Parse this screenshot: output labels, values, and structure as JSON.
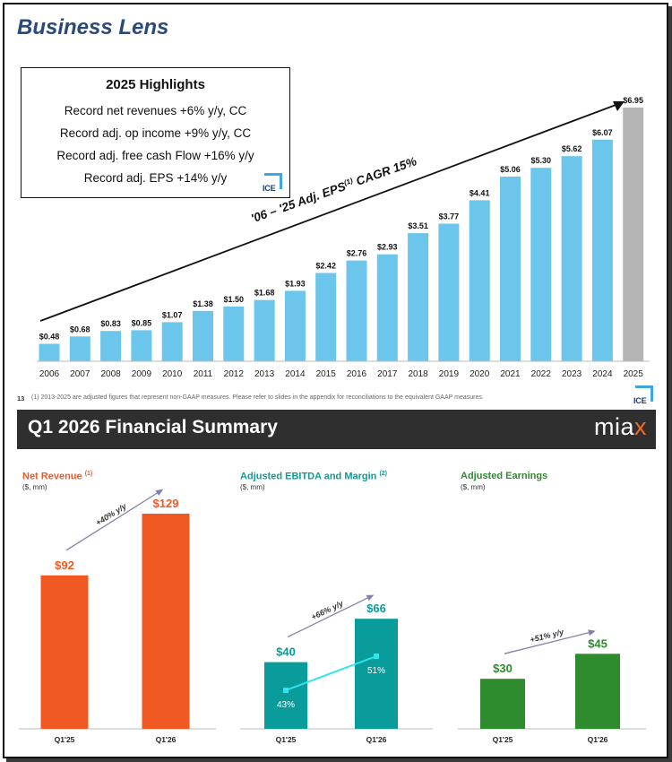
{
  "page": {
    "title": "Business Lens"
  },
  "highlights": {
    "title": "2025 Highlights",
    "items": [
      "Record net revenues +6% y/y, CC",
      "Record adj. op income +9% y/y, CC",
      "Record adj. free cash Flow +16% y/y",
      "Record adj. EPS +14% y/y"
    ],
    "logo_text": "ICE"
  },
  "slide": {
    "number": "13",
    "footnote": "(1) 2013-2025 are adjusted figures that represent non-GAAP measures. Please refer to slides in the appendix for reconciliations to the equivalent GAAP measures.",
    "logo_text": "ICE"
  },
  "summary": {
    "title": "Q1 2026 Financial Summary",
    "logo": "mia",
    "logo_accent": "x"
  },
  "colors": {
    "eps_bar": "#6cc5ea",
    "eps_bar_highlight": "#b5b5b5",
    "net_revenue": "#f05a22",
    "ebitda": "#0a9b9b",
    "ebitda_margin_line": "#33e4ee",
    "adj_earnings": "#2e8b2e",
    "trend_arrow": "#8080a8"
  },
  "chart_data": [
    {
      "type": "bar",
      "annotation": "'06 – '25 Adj. EPS(1) CAGR 15%",
      "categories": [
        "2006",
        "2007",
        "2008",
        "2009",
        "2010",
        "2011",
        "2012",
        "2013",
        "2014",
        "2015",
        "2016",
        "2017",
        "2018",
        "2019",
        "2020",
        "2021",
        "2022",
        "2023",
        "2024",
        "2025"
      ],
      "values": [
        0.48,
        0.68,
        0.83,
        0.85,
        1.07,
        1.38,
        1.5,
        1.68,
        1.93,
        2.42,
        2.76,
        2.93,
        3.51,
        3.77,
        4.41,
        5.06,
        5.3,
        5.62,
        6.07,
        6.95
      ],
      "labels": [
        "$0.48",
        "$0.68",
        "$0.83",
        "$0.85",
        "$1.07",
        "$1.38",
        "$1.50",
        "$1.68",
        "$1.93",
        "$2.42",
        "$2.76",
        "$2.93",
        "$3.51",
        "$3.77",
        "$4.41",
        "$5.06",
        "$5.30",
        "$5.62",
        "$6.07",
        "$6.95"
      ],
      "highlight_category": "2025"
    },
    {
      "type": "bar",
      "title": "Net Revenue",
      "title_note": "(1)",
      "subtitle": "($, mm)",
      "categories": [
        "Q1'25",
        "Q1'26"
      ],
      "values": [
        92,
        129
      ],
      "labels": [
        "$92",
        "$129"
      ],
      "growth_label": "+40% y/y"
    },
    {
      "type": "bar",
      "title": "Adjusted EBITDA and Margin",
      "title_note": "(2)",
      "subtitle": "($, mm)",
      "categories": [
        "Q1'25",
        "Q1'26"
      ],
      "values": [
        40,
        66
      ],
      "labels": [
        "$40",
        "$66"
      ],
      "growth_label": "+66% y/y",
      "margin_series": {
        "values": [
          43,
          51
        ],
        "labels": [
          "43%",
          "51%"
        ]
      }
    },
    {
      "type": "bar",
      "title": "Adjusted Earnings",
      "subtitle": "($, mm)",
      "categories": [
        "Q1'25",
        "Q1'26"
      ],
      "values": [
        30,
        45
      ],
      "labels": [
        "$30",
        "$45"
      ],
      "growth_label": "+51% y/y"
    }
  ]
}
